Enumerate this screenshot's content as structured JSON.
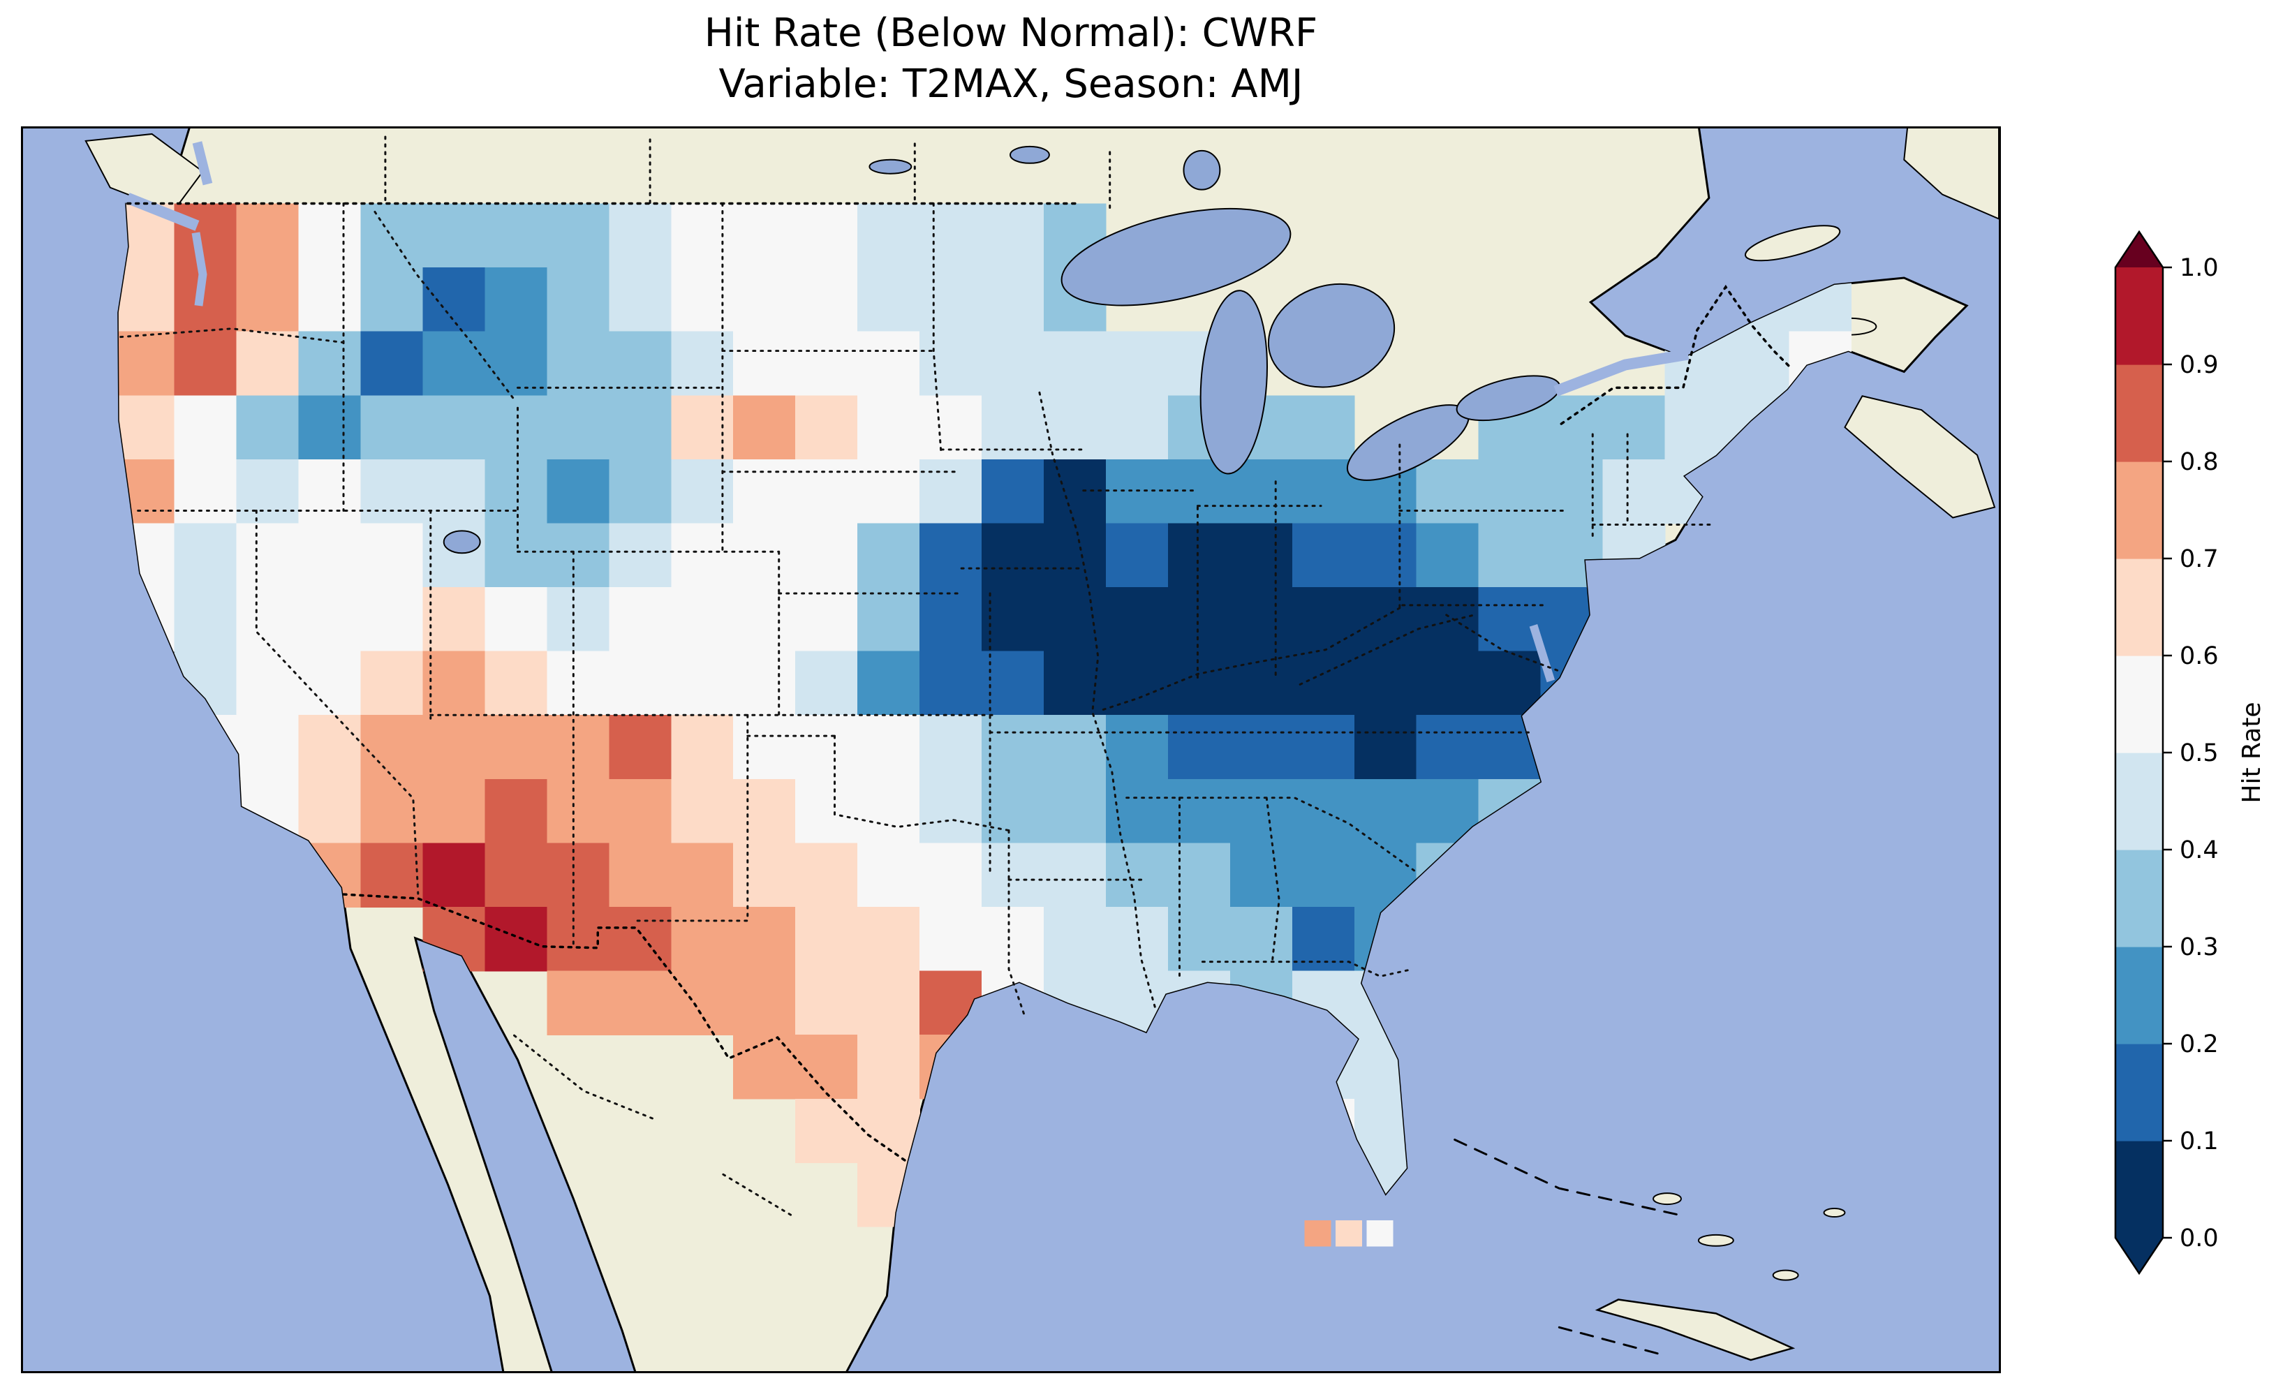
{
  "figure": {
    "title_line1": "Hit Rate (Below Normal): CWRF",
    "title_line2": "Variable: T2MAX, Season: AMJ"
  },
  "chart_data": {
    "type": "heatmap",
    "title": "Hit Rate (Below Normal): CWRF",
    "subtitle": "Variable: T2MAX, Season: AMJ",
    "metric": "Hit Rate",
    "category": "Below Normal",
    "model": "CWRF",
    "variable": "T2MAX",
    "season": "AMJ",
    "region": "Contiguous United States",
    "colorbar": {
      "label": "Hit Rate",
      "tick_labels": [
        "1.0",
        "0.9",
        "0.8",
        "0.7",
        "0.6",
        "0.5",
        "0.4",
        "0.3",
        "0.2",
        "0.1",
        "0.0"
      ],
      "vmin": 0.0,
      "vmax": 1.0,
      "extend": "both",
      "segment_colors_bottom_to_top": [
        "#053061",
        "#2166ac",
        "#4393c3",
        "#92c5de",
        "#d1e5f0",
        "#f7f7f7",
        "#fddbc7",
        "#f4a582",
        "#d6604d",
        "#b2182b"
      ],
      "under_color": "#053061",
      "over_color": "#67001f"
    },
    "colormap_bins": [
      {
        "max": 0.1,
        "color": "#053061"
      },
      {
        "max": 0.2,
        "color": "#2166ac"
      },
      {
        "max": 0.3,
        "color": "#4393c3"
      },
      {
        "max": 0.4,
        "color": "#92c5de"
      },
      {
        "max": 0.5,
        "color": "#d1e5f0"
      },
      {
        "max": 0.6,
        "color": "#f7f7f7"
      },
      {
        "max": 0.7,
        "color": "#fddbc7"
      },
      {
        "max": 0.8,
        "color": "#f4a582"
      },
      {
        "max": 0.9,
        "color": "#d6604d"
      },
      {
        "max": 1.01,
        "color": "#b2182b"
      }
    ],
    "map_colors": {
      "ocean": "#9db3e0",
      "land": "#efeedb",
      "lake": "#8fa8d6",
      "coastline": "#000000"
    },
    "grid": {
      "cols": 28,
      "rows": 16,
      "cell_values": [
        [
          0.6,
          0.8,
          0.7,
          0.55,
          0.35,
          0.3,
          0.3,
          0.35,
          0.45,
          0.5,
          0.55,
          0.5,
          0.45,
          0.4,
          0.4,
          0.35,
          null,
          null,
          null,
          null,
          null,
          null,
          null,
          null,
          null,
          null,
          null,
          null
        ],
        [
          0.6,
          0.85,
          0.75,
          0.5,
          0.3,
          0.15,
          0.2,
          0.3,
          0.4,
          0.5,
          0.5,
          0.5,
          0.45,
          0.45,
          0.4,
          0.35,
          null,
          null,
          null,
          null,
          null,
          null,
          null,
          null,
          null,
          null,
          0.45,
          0.4
        ],
        [
          0.7,
          0.8,
          0.6,
          0.3,
          0.1,
          0.2,
          0.25,
          0.3,
          0.35,
          0.4,
          0.5,
          0.55,
          0.5,
          0.45,
          0.45,
          0.4,
          0.45,
          0.4,
          null,
          null,
          null,
          null,
          null,
          null,
          null,
          0.4,
          0.45,
          0.5
        ],
        [
          0.65,
          0.55,
          0.35,
          0.2,
          0.3,
          0.35,
          0.3,
          0.35,
          0.3,
          0.6,
          0.75,
          0.6,
          0.5,
          0.5,
          0.45,
          0.4,
          0.4,
          0.35,
          0.35,
          0.35,
          null,
          null,
          0.35,
          0.3,
          0.35,
          0.4,
          0.45,
          0.5
        ],
        [
          0.7,
          0.55,
          0.45,
          0.5,
          0.45,
          0.4,
          0.3,
          0.25,
          0.35,
          0.45,
          0.55,
          0.55,
          0.5,
          0.4,
          0.15,
          0.05,
          0.25,
          0.25,
          0.25,
          0.2,
          0.25,
          0.3,
          0.35,
          0.35,
          0.4,
          0.45,
          0.45,
          null
        ],
        [
          0.55,
          0.45,
          0.5,
          0.55,
          0.5,
          0.45,
          0.35,
          0.3,
          0.45,
          0.5,
          0.55,
          0.55,
          0.3,
          0.1,
          0.05,
          0.05,
          0.1,
          0.05,
          0.05,
          0.1,
          0.15,
          0.25,
          0.3,
          0.35,
          0.4,
          null,
          null,
          null
        ],
        [
          0.5,
          0.45,
          0.55,
          0.5,
          0.55,
          0.6,
          0.5,
          0.45,
          0.5,
          0.55,
          0.55,
          0.5,
          0.35,
          0.1,
          0.05,
          0.05,
          0.05,
          0.05,
          0.05,
          0.05,
          0.05,
          0.05,
          0.1,
          0.15,
          null,
          null,
          null,
          null
        ],
        [
          null,
          0.45,
          0.5,
          0.55,
          0.6,
          0.7,
          0.65,
          0.55,
          0.55,
          0.55,
          0.5,
          0.45,
          0.25,
          0.1,
          0.1,
          0.05,
          0.05,
          0.05,
          0.05,
          0.05,
          0.05,
          0.05,
          0.05,
          0.1,
          null,
          null,
          null,
          null
        ],
        [
          null,
          0.5,
          0.55,
          0.6,
          0.7,
          0.7,
          0.7,
          0.75,
          0.85,
          0.6,
          0.55,
          0.55,
          0.5,
          0.45,
          0.35,
          0.3,
          0.2,
          0.15,
          0.1,
          0.1,
          0.05,
          0.1,
          0.1,
          0.15,
          null,
          null,
          null,
          null
        ],
        [
          null,
          null,
          0.55,
          0.6,
          0.7,
          0.75,
          0.8,
          0.75,
          0.7,
          0.65,
          0.6,
          0.55,
          0.5,
          0.4,
          0.3,
          0.3,
          0.25,
          0.2,
          0.2,
          0.25,
          0.2,
          0.25,
          0.3,
          null,
          null,
          null,
          null,
          null
        ],
        [
          null,
          null,
          null,
          0.7,
          0.8,
          0.9,
          0.85,
          0.8,
          0.75,
          0.7,
          0.65,
          0.6,
          0.55,
          0.5,
          0.45,
          0.4,
          0.35,
          0.3,
          0.25,
          0.2,
          0.25,
          0.3,
          null,
          null,
          null,
          null,
          null,
          null
        ],
        [
          null,
          null,
          null,
          null,
          null,
          0.85,
          0.95,
          0.85,
          0.8,
          0.75,
          0.7,
          0.65,
          0.6,
          0.55,
          0.5,
          0.45,
          0.4,
          0.35,
          0.3,
          0.1,
          0.2,
          null,
          null,
          null,
          null,
          null,
          null,
          null
        ],
        [
          null,
          null,
          null,
          null,
          null,
          null,
          null,
          0.75,
          0.7,
          0.75,
          0.7,
          0.65,
          0.6,
          0.8,
          0.5,
          0.45,
          0.4,
          0.4,
          0.35,
          0.4,
          0.45,
          null,
          null,
          null,
          null,
          null,
          null,
          null
        ],
        [
          null,
          null,
          null,
          null,
          null,
          null,
          null,
          null,
          null,
          null,
          0.7,
          0.7,
          0.65,
          0.7,
          null,
          null,
          null,
          null,
          null,
          0.45,
          0.4,
          null,
          null,
          null,
          null,
          null,
          null,
          null
        ],
        [
          null,
          null,
          null,
          null,
          null,
          null,
          null,
          null,
          null,
          null,
          null,
          0.65,
          0.6,
          null,
          null,
          null,
          null,
          null,
          null,
          0.5,
          0.45,
          null,
          null,
          null,
          null,
          null,
          null,
          null
        ],
        [
          null,
          null,
          null,
          null,
          null,
          null,
          null,
          null,
          null,
          null,
          null,
          null,
          0.6,
          null,
          null,
          null,
          null,
          null,
          null,
          0.5,
          0.45,
          null,
          null,
          null,
          null,
          null,
          null,
          null
        ]
      ]
    },
    "extra_cells": [
      {
        "col": 19.2,
        "row": 15.9,
        "value": 0.72
      },
      {
        "col": 19.7,
        "row": 15.9,
        "value": 0.65
      },
      {
        "col": 20.2,
        "row": 15.9,
        "value": 0.55
      }
    ]
  }
}
